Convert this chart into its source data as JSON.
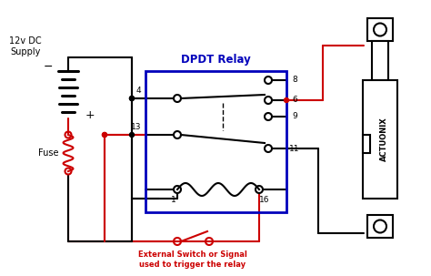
{
  "bg_color": "#ffffff",
  "black": "#000000",
  "red": "#cc0000",
  "blue": "#0000bb",
  "title": "DPDT Relay",
  "supply_label": "12v DC\nSupply",
  "fuse_label": "Fuse",
  "actuonix_label": "ACTUONIX",
  "switch_label": "External Switch or Signal\nused to trigger the relay",
  "figsize": [
    4.74,
    3.03
  ],
  "dpi": 100
}
